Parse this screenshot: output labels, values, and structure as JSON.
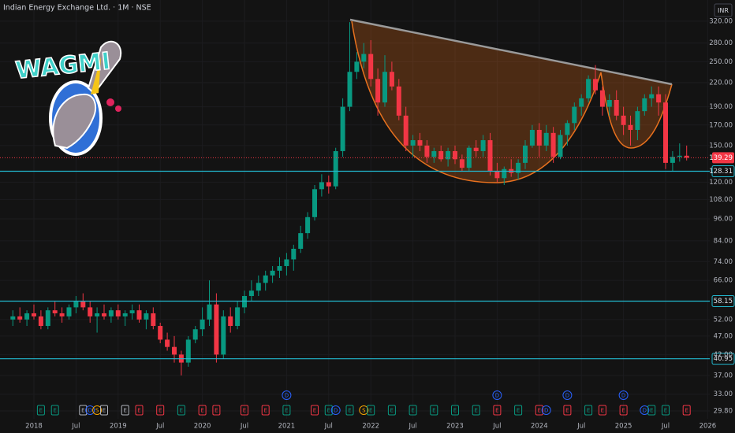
{
  "chart_data": {
    "type": "candlestick",
    "title": "Indian Energy Exchange Ltd. · 1M · NSE",
    "currency": "INR",
    "logo_text": "WAGMI",
    "log_scale": true,
    "grid": true,
    "up_color": "#089981",
    "down_color": "#f23645",
    "x": [
      "2017-10",
      "2017-11",
      "2017-12",
      "2018-01",
      "2018-02",
      "2018-03",
      "2018-04",
      "2018-05",
      "2018-06",
      "2018-07",
      "2018-08",
      "2018-09",
      "2018-10",
      "2018-11",
      "2018-12",
      "2019-01",
      "2019-02",
      "2019-03",
      "2019-04",
      "2019-05",
      "2019-06",
      "2019-07",
      "2019-08",
      "2019-09",
      "2019-10",
      "2019-11",
      "2019-12",
      "2020-01",
      "2020-02",
      "2020-03",
      "2020-04",
      "2020-05",
      "2020-06",
      "2020-07",
      "2020-08",
      "2020-09",
      "2020-10",
      "2020-11",
      "2020-12",
      "2021-01",
      "2021-02",
      "2021-03",
      "2021-04",
      "2021-05",
      "2021-06",
      "2021-07",
      "2021-08",
      "2021-09",
      "2021-10",
      "2021-11",
      "2021-12",
      "2022-01",
      "2022-02",
      "2022-03",
      "2022-04",
      "2022-05",
      "2022-06",
      "2022-07",
      "2022-08",
      "2022-09",
      "2022-10",
      "2022-11",
      "2022-12",
      "2023-01",
      "2023-02",
      "2023-03",
      "2023-04",
      "2023-05",
      "2023-06",
      "2023-07",
      "2023-08",
      "2023-09",
      "2023-10",
      "2023-11",
      "2023-12",
      "2024-01",
      "2024-02",
      "2024-03",
      "2024-04",
      "2024-05",
      "2024-06",
      "2024-07",
      "2024-08",
      "2024-09",
      "2024-10",
      "2024-11",
      "2024-12",
      "2025-01",
      "2025-02",
      "2025-03",
      "2025-04",
      "2025-05",
      "2025-06",
      "2025-07",
      "2025-08",
      "2025-09",
      "2025-10"
    ],
    "open": [
      52,
      53,
      52,
      54,
      53,
      50,
      55,
      54,
      53,
      56,
      58,
      56,
      53,
      54,
      53,
      55,
      53,
      54,
      55,
      52,
      54,
      50,
      46,
      44,
      42,
      40,
      46,
      49,
      52,
      57,
      42,
      53,
      50,
      56,
      60,
      62,
      65,
      68,
      70,
      72,
      75,
      80,
      88,
      97,
      115,
      120,
      117,
      145,
      190,
      235,
      250,
      262,
      225,
      195,
      235,
      215,
      180,
      150,
      155,
      150,
      140,
      145,
      138,
      145,
      138,
      131,
      148,
      145,
      155,
      128,
      123,
      130,
      127,
      135,
      150,
      165,
      150,
      162,
      140,
      160,
      172,
      190,
      200,
      225,
      210,
      190,
      198,
      180,
      170,
      165,
      185,
      200,
      205,
      195,
      135,
      140,
      141
    ],
    "high": [
      55,
      56,
      55,
      57,
      55,
      56,
      58,
      56,
      57,
      60,
      61,
      58,
      56,
      57,
      56,
      57,
      55,
      57,
      57,
      55,
      56,
      51,
      48,
      47,
      43,
      47,
      50,
      56,
      66,
      61,
      55,
      56,
      58,
      62,
      66,
      68,
      70,
      72,
      76,
      78,
      82,
      92,
      100,
      118,
      126,
      125,
      148,
      200,
      318,
      265,
      280,
      285,
      240,
      260,
      250,
      225,
      190,
      160,
      162,
      155,
      148,
      150,
      148,
      150,
      142,
      150,
      155,
      160,
      162,
      135,
      132,
      138,
      138,
      155,
      170,
      172,
      170,
      168,
      165,
      175,
      195,
      205,
      230,
      245,
      215,
      205,
      210,
      190,
      180,
      190,
      205,
      215,
      215,
      205,
      145,
      152,
      150
    ],
    "low": [
      50,
      51,
      50,
      52,
      49,
      49,
      53,
      51,
      52,
      54,
      55,
      51,
      48,
      52,
      51,
      52,
      50,
      52,
      51,
      49,
      49,
      45,
      43,
      40,
      37,
      39,
      45,
      47,
      50,
      40,
      41,
      48,
      49,
      54,
      58,
      60,
      62,
      65,
      67,
      68,
      70,
      78,
      85,
      95,
      110,
      112,
      115,
      140,
      185,
      225,
      240,
      215,
      180,
      190,
      210,
      175,
      145,
      140,
      145,
      135,
      135,
      136,
      132,
      134,
      128,
      128,
      140,
      140,
      125,
      120,
      118,
      124,
      122,
      130,
      148,
      140,
      145,
      135,
      138,
      150,
      165,
      180,
      195,
      205,
      180,
      180,
      175,
      160,
      150,
      155,
      180,
      190,
      180,
      130,
      128,
      136,
      137
    ],
    "close": [
      53,
      52,
      54,
      53,
      50,
      55,
      54,
      53,
      56,
      58,
      56,
      53,
      54,
      53,
      55,
      53,
      54,
      55,
      52,
      54,
      50,
      46,
      44,
      42,
      40,
      46,
      49,
      52,
      57,
      42,
      53,
      50,
      56,
      60,
      62,
      65,
      68,
      70,
      72,
      75,
      80,
      88,
      97,
      115,
      120,
      117,
      145,
      190,
      235,
      250,
      262,
      225,
      195,
      235,
      215,
      180,
      150,
      155,
      150,
      140,
      145,
      138,
      145,
      138,
      131,
      148,
      145,
      155,
      128,
      123,
      130,
      127,
      135,
      150,
      165,
      150,
      162,
      140,
      160,
      172,
      190,
      200,
      225,
      210,
      190,
      198,
      180,
      170,
      165,
      185,
      200,
      205,
      195,
      135,
      140,
      141,
      139.29
    ],
    "ylim": [
      28.4,
      364
    ],
    "yticks": [
      {
        "value": 29.8,
        "label": "29.80"
      },
      {
        "value": 33,
        "label": "33.00"
      },
      {
        "value": 37,
        "label": "37.00"
      },
      {
        "value": 42,
        "label": "42.00"
      },
      {
        "value": 47,
        "label": "47.00"
      },
      {
        "value": 52,
        "label": "52.00"
      },
      {
        "value": 66,
        "label": "66.00"
      },
      {
        "value": 74,
        "label": "74.00"
      },
      {
        "value": 84,
        "label": "84.00"
      },
      {
        "value": 96,
        "label": "96.00"
      },
      {
        "value": 108,
        "label": "108.00"
      },
      {
        "value": 120,
        "label": "120.00"
      },
      {
        "value": 150,
        "label": "150.00"
      },
      {
        "value": 170,
        "label": "170.00"
      },
      {
        "value": 190,
        "label": "190.00"
      },
      {
        "value": 220,
        "label": "220.00"
      },
      {
        "value": 250,
        "label": "250.00"
      },
      {
        "value": 280,
        "label": "280.00"
      },
      {
        "value": 320,
        "label": "320.00"
      }
    ],
    "xticks": [
      {
        "value": "2018-01",
        "label": "2018"
      },
      {
        "value": "2018-07",
        "label": "Jul"
      },
      {
        "value": "2019-01",
        "label": "2019"
      },
      {
        "value": "2019-07",
        "label": "Jul"
      },
      {
        "value": "2020-01",
        "label": "2020"
      },
      {
        "value": "2020-07",
        "label": "Jul"
      },
      {
        "value": "2021-01",
        "label": "2021"
      },
      {
        "value": "2021-07",
        "label": "Jul"
      },
      {
        "value": "2022-01",
        "label": "2022"
      },
      {
        "value": "2022-07",
        "label": "Jul"
      },
      {
        "value": "2023-01",
        "label": "2023"
      },
      {
        "value": "2023-07",
        "label": "Jul"
      },
      {
        "value": "2024-01",
        "label": "2024"
      },
      {
        "value": "2024-07",
        "label": "Jul"
      },
      {
        "value": "2025-01",
        "label": "2025"
      },
      {
        "value": "2025-07",
        "label": "Jul"
      },
      {
        "value": "2026-01",
        "label": "2026"
      }
    ],
    "hlines": [
      {
        "value": 128.31,
        "label": "128.31"
      },
      {
        "value": 58.15,
        "label": "58.15"
      },
      {
        "value": 40.95,
        "label": "40.95"
      }
    ],
    "hline_color": "#22b8cf",
    "last_price": {
      "value": 139.29,
      "label": "139.29"
    },
    "events": [
      {
        "x": "2018-02",
        "label": "E",
        "color": "#089981"
      },
      {
        "x": "2018-04",
        "label": "E",
        "color": "#089981"
      },
      {
        "x": "2018-08",
        "label": "E",
        "color": "#b2b5be"
      },
      {
        "x": "2018-09",
        "label": "D",
        "color": "#2962ff"
      },
      {
        "x": "2018-10",
        "label": "S",
        "color": "#f7a600"
      },
      {
        "x": "2018-11",
        "label": "E",
        "color": "#b2b5be"
      },
      {
        "x": "2019-02",
        "label": "E",
        "color": "#b2b5be"
      },
      {
        "x": "2019-04",
        "label": "E",
        "color": "#f23645"
      },
      {
        "x": "2019-07",
        "label": "E",
        "color": "#f23645"
      },
      {
        "x": "2019-10",
        "label": "E",
        "color": "#089981"
      },
      {
        "x": "2020-01",
        "label": "E",
        "color": "#f23645"
      },
      {
        "x": "2020-03",
        "label": "E",
        "color": "#f23645"
      },
      {
        "x": "2020-07",
        "label": "E",
        "color": "#f23645"
      },
      {
        "x": "2020-10",
        "label": "E",
        "color": "#f23645"
      },
      {
        "x": "2021-01",
        "label": "E",
        "color": "#089981"
      },
      {
        "x": "2021-01",
        "label": "D",
        "color": "#2962ff"
      },
      {
        "x": "2021-05",
        "label": "E",
        "color": "#f23645"
      },
      {
        "x": "2021-07",
        "label": "E",
        "color": "#089981"
      },
      {
        "x": "2021-08",
        "label": "D",
        "color": "#2962ff"
      },
      {
        "x": "2021-10",
        "label": "E",
        "color": "#089981"
      },
      {
        "x": "2021-12",
        "label": "S",
        "color": "#f7a600"
      },
      {
        "x": "2022-01",
        "label": "E",
        "color": "#089981"
      },
      {
        "x": "2022-04",
        "label": "E",
        "color": "#089981"
      },
      {
        "x": "2022-07",
        "label": "E",
        "color": "#089981"
      },
      {
        "x": "2022-10",
        "label": "E",
        "color": "#089981"
      },
      {
        "x": "2023-01",
        "label": "E",
        "color": "#089981"
      },
      {
        "x": "2023-04",
        "label": "E",
        "color": "#089981"
      },
      {
        "x": "2023-07",
        "label": "E",
        "color": "#f23645"
      },
      {
        "x": "2023-07",
        "label": "D",
        "color": "#2962ff"
      },
      {
        "x": "2023-10",
        "label": "E",
        "color": "#089981"
      },
      {
        "x": "2024-01",
        "label": "E",
        "color": "#f23645"
      },
      {
        "x": "2024-02",
        "label": "D",
        "color": "#2962ff"
      },
      {
        "x": "2024-05",
        "label": "E",
        "color": "#f23645"
      },
      {
        "x": "2024-05",
        "label": "D",
        "color": "#2962ff"
      },
      {
        "x": "2024-08",
        "label": "E",
        "color": "#089981"
      },
      {
        "x": "2024-10",
        "label": "E",
        "color": "#f23645"
      },
      {
        "x": "2025-01",
        "label": "E",
        "color": "#f23645"
      },
      {
        "x": "2025-01",
        "label": "D",
        "color": "#2962ff"
      },
      {
        "x": "2025-04",
        "label": "D",
        "color": "#2962ff"
      },
      {
        "x": "2025-05",
        "label": "E",
        "color": "#089981"
      },
      {
        "x": "2025-07",
        "label": "E",
        "color": "#089981"
      },
      {
        "x": "2025-10",
        "label": "E",
        "color": "#f23645"
      }
    ]
  }
}
